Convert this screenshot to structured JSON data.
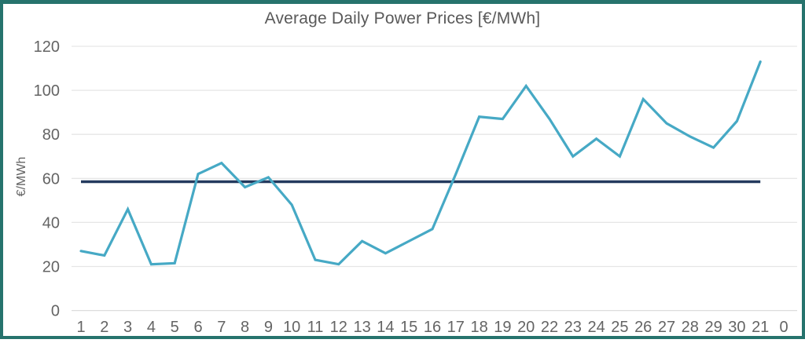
{
  "chart_data": {
    "type": "line",
    "title": "Average Daily Power Prices [€/MWh]",
    "xlabel": "",
    "ylabel": "€/MWh",
    "categories": [
      "1",
      "2",
      "3",
      "4",
      "5",
      "6",
      "7",
      "8",
      "9",
      "10",
      "11",
      "12",
      "13",
      "14",
      "15",
      "16",
      "17",
      "18",
      "19",
      "20",
      "22",
      "23",
      "24",
      "25",
      "26",
      "27",
      "28",
      "29",
      "30",
      "21",
      "0"
    ],
    "series": [
      {
        "name": "average-daily-power-price",
        "type": "line",
        "color": "#46a9c5",
        "values": [
          27,
          25,
          46,
          21,
          21.5,
          62,
          67,
          56,
          60.5,
          48,
          23,
          21,
          31.5,
          26,
          31.5,
          37,
          62,
          88,
          87,
          102,
          87,
          70,
          78,
          70,
          96,
          85,
          79,
          74,
          86,
          113,
          null
        ]
      },
      {
        "name": "period-average-reference",
        "type": "constant-line",
        "color": "#243a5e",
        "value": 58.5,
        "from_category": "1",
        "to_category": "21"
      }
    ],
    "ylim": [
      0,
      120
    ],
    "yticks": [
      0,
      20,
      40,
      60,
      80,
      100,
      120
    ],
    "grid": "horizontal",
    "legend_position": "none"
  },
  "colors": {
    "frame_border": "#26736d",
    "gridline": "#e6e6e6",
    "zero_gridline": "#dcdcdc",
    "axis_text": "#646464",
    "title_text": "#595959",
    "background": "#ffffff"
  }
}
